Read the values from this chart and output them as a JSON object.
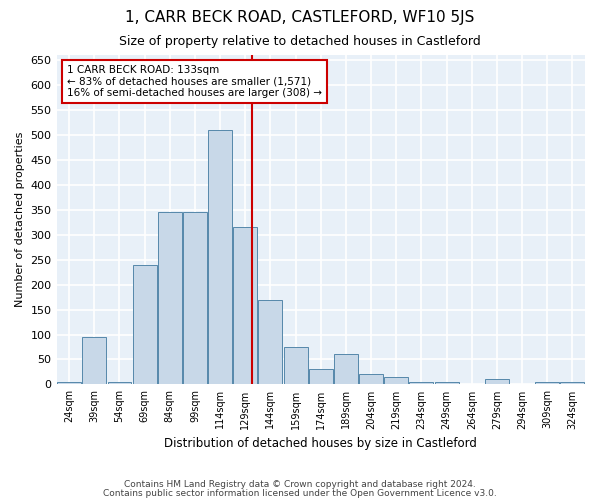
{
  "title": "1, CARR BECK ROAD, CASTLEFORD, WF10 5JS",
  "subtitle": "Size of property relative to detached houses in Castleford",
  "xlabel": "Distribution of detached houses by size in Castleford",
  "ylabel": "Number of detached properties",
  "categories": [
    "24sqm",
    "39sqm",
    "54sqm",
    "69sqm",
    "84sqm",
    "99sqm",
    "114sqm",
    "129sqm",
    "144sqm",
    "159sqm",
    "174sqm",
    "189sqm",
    "204sqm",
    "219sqm",
    "234sqm",
    "249sqm",
    "264sqm",
    "279sqm",
    "294sqm",
    "309sqm",
    "324sqm"
  ],
  "values": [
    5,
    95,
    5,
    240,
    345,
    345,
    510,
    315,
    170,
    75,
    30,
    60,
    20,
    15,
    5,
    5,
    0,
    10,
    0,
    5,
    5
  ],
  "bar_color": "#c8d8e8",
  "bar_edge_color": "#5588aa",
  "background_color": "#e8f0f8",
  "grid_color": "#ffffff",
  "vline_color": "#cc0000",
  "annotation_line1": "1 CARR BECK ROAD: 133sqm",
  "annotation_line2": "← 83% of detached houses are smaller (1,571)",
  "annotation_line3": "16% of semi-detached houses are larger (308) →",
  "annotation_box_color": "#ffffff",
  "annotation_box_edge": "#cc0000",
  "ylim": [
    0,
    660
  ],
  "yticks": [
    0,
    50,
    100,
    150,
    200,
    250,
    300,
    350,
    400,
    450,
    500,
    550,
    600,
    650
  ],
  "title_fontsize": 11,
  "subtitle_fontsize": 9,
  "footer1": "Contains HM Land Registry data © Crown copyright and database right 2024.",
  "footer2": "Contains public sector information licensed under the Open Government Licence v3.0."
}
